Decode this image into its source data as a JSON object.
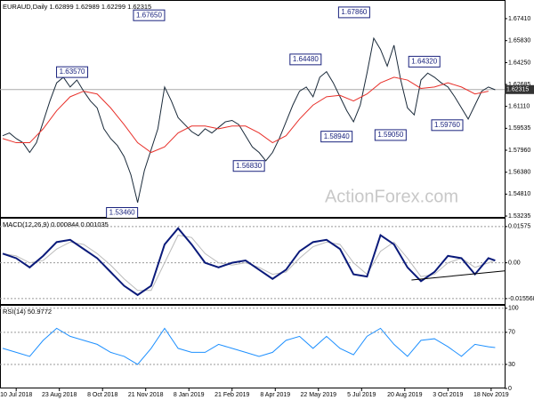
{
  "chart_data": [
    {
      "type": "line",
      "title": "EURAUD,Daily  1.62899 1.62989 1.62299 1.62315",
      "watermark": "ActionForex.com",
      "xlim": [
        -12,
        362
      ],
      "ylim": [
        1.5311,
        1.6862
      ],
      "yticks": [
        {
          "value": 1.6741,
          "label": "1.67410"
        },
        {
          "value": 1.6583,
          "label": "1.65830"
        },
        {
          "value": 1.6425,
          "label": "1.64250"
        },
        {
          "value": 1.62685,
          "label": "1.62685"
        },
        {
          "value": 1.6111,
          "label": "1.61110"
        },
        {
          "value": 1.59535,
          "label": "1.59535"
        },
        {
          "value": 1.5796,
          "label": "1.57960"
        },
        {
          "value": 1.5638,
          "label": "1.56380"
        },
        {
          "value": 1.5481,
          "label": "1.54810"
        },
        {
          "value": 1.53235,
          "label": "1.53235"
        }
      ],
      "current_price": 1.62315,
      "series": [
        {
          "color": "#1a2a3a",
          "x": [
            -10,
            -5,
            0,
            5,
            10,
            15,
            20,
            25,
            30,
            35,
            40,
            45,
            50,
            55,
            60,
            65,
            70,
            75,
            80,
            85,
            90,
            95,
            100,
            105,
            110,
            115,
            120,
            125,
            130,
            135,
            140,
            145,
            150,
            155,
            160,
            165,
            170,
            175,
            180,
            185,
            190,
            195,
            200,
            205,
            210,
            215,
            220,
            225,
            230,
            235,
            240,
            245,
            250,
            255,
            260,
            265,
            270,
            275,
            280,
            285,
            290,
            295,
            300,
            305,
            310,
            315,
            320,
            325,
            330,
            335,
            340,
            345,
            350,
            355
          ],
          "values": [
            1.59,
            1.592,
            1.588,
            1.585,
            1.578,
            1.585,
            1.6,
            1.615,
            1.628,
            1.632,
            1.625,
            1.63,
            1.622,
            1.615,
            1.61,
            1.595,
            1.588,
            1.583,
            1.575,
            1.562,
            1.542,
            1.565,
            1.58,
            1.595,
            1.625,
            1.615,
            1.603,
            1.598,
            1.593,
            1.59,
            1.595,
            1.592,
            1.596,
            1.6,
            1.601,
            1.598,
            1.59,
            1.582,
            1.578,
            1.572,
            1.578,
            1.588,
            1.6,
            1.612,
            1.622,
            1.625,
            1.618,
            1.632,
            1.636,
            1.628,
            1.618,
            1.608,
            1.6,
            1.612,
            1.635,
            1.66,
            1.652,
            1.64,
            1.655,
            1.63,
            1.61,
            1.605,
            1.63,
            1.635,
            1.632,
            1.628,
            1.625,
            1.618,
            1.61,
            1.602,
            1.612,
            1.622,
            1.625,
            1.623
          ]
        },
        {
          "color": "#e8302a",
          "x": [
            -10,
            0,
            10,
            20,
            30,
            40,
            50,
            60,
            70,
            80,
            90,
            100,
            110,
            120,
            130,
            140,
            150,
            160,
            170,
            180,
            190,
            200,
            210,
            220,
            230,
            240,
            250,
            260,
            270,
            280,
            290,
            300,
            310,
            320,
            330,
            340,
            350
          ],
          "values": [
            1.588,
            1.585,
            1.585,
            1.595,
            1.608,
            1.618,
            1.622,
            1.62,
            1.61,
            1.598,
            1.585,
            1.578,
            1.582,
            1.592,
            1.597,
            1.597,
            1.595,
            1.597,
            1.597,
            1.592,
            1.585,
            1.59,
            1.602,
            1.612,
            1.618,
            1.619,
            1.615,
            1.62,
            1.628,
            1.632,
            1.63,
            1.624,
            1.625,
            1.628,
            1.625,
            1.62,
            1.622
          ]
        }
      ],
      "annotations": [
        {
          "x": 53,
          "value": 1.6357,
          "label": "1.63570"
        },
        {
          "x": 110,
          "value": 1.6765,
          "label": "1.67650"
        },
        {
          "x": 90,
          "value": 1.5346,
          "label": "1.53460"
        },
        {
          "x": 184,
          "value": 1.5683,
          "label": "1.56830"
        },
        {
          "x": 249,
          "value": 1.5894,
          "label": "1.58940"
        },
        {
          "x": 226,
          "value": 1.6448,
          "label": "1.64480"
        },
        {
          "x": 262,
          "value": 1.6786,
          "label": "1.67860"
        },
        {
          "x": 289,
          "value": 1.5905,
          "label": "1.59050"
        },
        {
          "x": 314,
          "value": 1.6432,
          "label": "1.64320"
        },
        {
          "x": 331,
          "value": 1.5976,
          "label": "1.59760"
        }
      ]
    },
    {
      "type": "line",
      "title": "MACD(12,26,9) 0.000844 0.001035",
      "xlim": [
        -12,
        362
      ],
      "ylim": [
        -0.0183,
        0.0188
      ],
      "yticks": [
        0.01575,
        {
          "value": 0,
          "label": "0.00"
        },
        -0.015568
      ],
      "series": [
        {
          "color": "#bbbbbb",
          "x": [
            -10,
            0,
            10,
            20,
            30,
            40,
            50,
            60,
            70,
            80,
            90,
            100,
            110,
            120,
            130,
            140,
            150,
            160,
            170,
            180,
            190,
            200,
            210,
            220,
            230,
            240,
            250,
            260,
            270,
            280,
            290,
            300,
            310,
            320,
            330,
            340,
            350,
            355
          ],
          "values": [
            0.004,
            0.003,
            0.0,
            0.001,
            0.006,
            0.009,
            0.008,
            0.004,
            -0.001,
            -0.007,
            -0.012,
            -0.012,
            0.0,
            0.012,
            0.011,
            0.004,
            0.0,
            -0.001,
            0.0,
            -0.002,
            -0.005,
            -0.004,
            0.002,
            0.007,
            0.009,
            0.008,
            0.0,
            -0.005,
            0.005,
            0.009,
            0.002,
            -0.006,
            -0.005,
            0.0,
            0.002,
            -0.002,
            0.0,
            0.001
          ]
        },
        {
          "color": "#0a1a7a",
          "x": [
            -10,
            0,
            10,
            20,
            30,
            40,
            50,
            60,
            70,
            80,
            90,
            100,
            110,
            120,
            130,
            140,
            150,
            160,
            170,
            180,
            190,
            200,
            210,
            220,
            230,
            240,
            250,
            260,
            270,
            280,
            290,
            300,
            310,
            320,
            330,
            340,
            350,
            355
          ],
          "values": [
            0.004,
            0.002,
            -0.002,
            0.003,
            0.009,
            0.01,
            0.006,
            0.002,
            -0.004,
            -0.01,
            -0.014,
            -0.01,
            0.008,
            0.015,
            0.008,
            0.0,
            -0.002,
            0.0,
            0.001,
            -0.003,
            -0.007,
            -0.003,
            0.005,
            0.009,
            0.01,
            0.006,
            -0.005,
            -0.006,
            0.012,
            0.008,
            -0.002,
            -0.008,
            -0.004,
            0.003,
            0.002,
            -0.005,
            0.002,
            0.001
          ]
        }
      ],
      "trendline": {
        "x": [
          293,
          362
        ],
        "values": [
          -0.0075,
          -0.0035
        ]
      }
    },
    {
      "type": "line",
      "title": "RSI(14) 50.9772",
      "xlim": [
        -12,
        362
      ],
      "ylim": [
        0,
        102
      ],
      "yticks": [
        100,
        70,
        30,
        0
      ],
      "xticks": [
        {
          "value": 0,
          "label": "10 Jul 2018"
        },
        {
          "value": 32,
          "label": "23 Aug 2018"
        },
        {
          "value": 64,
          "label": "8 Oct 2018"
        },
        {
          "value": 96,
          "label": "21 Nov 2018"
        },
        {
          "value": 128,
          "label": "8 Jan 2019"
        },
        {
          "value": 160,
          "label": "21 Feb 2019"
        },
        {
          "value": 192,
          "label": "8 Apr 2019"
        },
        {
          "value": 224,
          "label": "22 May 2019"
        },
        {
          "value": 256,
          "label": "5 Jul 2019"
        },
        {
          "value": 288,
          "label": "20 Aug 2019"
        },
        {
          "value": 320,
          "label": "3 Oct 2019"
        },
        {
          "value": 352,
          "label": "18 Nov 2019"
        }
      ],
      "series": [
        {
          "color": "#1e90ff",
          "x": [
            -10,
            0,
            10,
            20,
            30,
            40,
            50,
            60,
            70,
            80,
            90,
            100,
            110,
            120,
            130,
            140,
            150,
            160,
            170,
            180,
            190,
            200,
            210,
            220,
            230,
            240,
            250,
            260,
            270,
            280,
            290,
            300,
            310,
            320,
            330,
            340,
            350,
            355
          ],
          "values": [
            50,
            45,
            40,
            60,
            75,
            65,
            60,
            55,
            45,
            40,
            30,
            50,
            75,
            50,
            45,
            45,
            55,
            50,
            45,
            40,
            45,
            60,
            65,
            50,
            65,
            50,
            42,
            65,
            75,
            55,
            40,
            60,
            62,
            52,
            40,
            55,
            52,
            51
          ]
        }
      ]
    }
  ]
}
